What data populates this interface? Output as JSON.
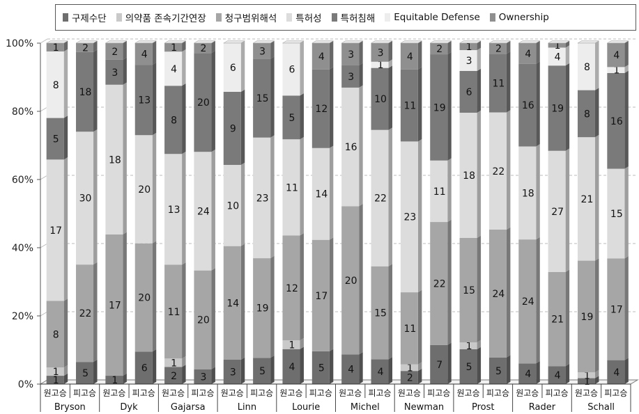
{
  "chart_data": {
    "type": "bar",
    "stacked": "percent",
    "categories": [
      "Bryson 원고승",
      "Bryson 피고승",
      "Dyk 원고승",
      "Dyk 피고승",
      "Gajarsa 원고승",
      "Gajarsa 피고승",
      "Linn 원고승",
      "Linn 피고승",
      "Lourie 원고승",
      "Lourie 피고승",
      "Michel 원고승",
      "Michel 피고승",
      "Newman 원고승",
      "Newman 피고승",
      "Prost 원고승",
      "Prost 피고승",
      "Rader 원고승",
      "Rader 피고승",
      "Schall 원고승",
      "Schall 피고승"
    ],
    "groups": [
      "Bryson",
      "Dyk",
      "Gajarsa",
      "Linn",
      "Lourie",
      "Michel",
      "Newman",
      "Prost",
      "Rader",
      "Schall"
    ],
    "sublabels": [
      "원고승",
      "피고승"
    ],
    "series": [
      {
        "name": "구제수단",
        "color": "#6e6e6e",
        "values": [
          1,
          5,
          1,
          6,
          2,
          3,
          3,
          5,
          4,
          5,
          4,
          4,
          2,
          7,
          5,
          5,
          4,
          4,
          1,
          4
        ]
      },
      {
        "name": "의약품 존속기간연장",
        "color": "#c9c9c9",
        "values": [
          1,
          0,
          0,
          0,
          1,
          0,
          0,
          0,
          1,
          0,
          0,
          0,
          1,
          0,
          1,
          0,
          0,
          0,
          1,
          0
        ]
      },
      {
        "name": "청구범위해석",
        "color": "#a6a6a6",
        "values": [
          8,
          22,
          17,
          20,
          11,
          20,
          14,
          19,
          12,
          17,
          20,
          15,
          11,
          22,
          15,
          24,
          24,
          21,
          19,
          17
        ]
      },
      {
        "name": "특허성",
        "color": "#dcdcdc",
        "values": [
          17,
          30,
          18,
          20,
          13,
          24,
          10,
          23,
          11,
          14,
          16,
          22,
          23,
          11,
          18,
          22,
          18,
          27,
          21,
          15
        ]
      },
      {
        "name": "특허침해",
        "color": "#7a7a7a",
        "values": [
          5,
          18,
          3,
          13,
          8,
          20,
          9,
          15,
          5,
          12,
          3,
          10,
          11,
          19,
          6,
          11,
          16,
          19,
          8,
          16
        ]
      },
      {
        "name": "Equitable  Defense",
        "color": "#ededed",
        "values": [
          8,
          0,
          0,
          0,
          4,
          0,
          6,
          0,
          6,
          0,
          0,
          1,
          0,
          0,
          3,
          0,
          0,
          4,
          8,
          1
        ]
      },
      {
        "name": "Ownership",
        "color": "#8f8f8f",
        "values": [
          1,
          2,
          2,
          4,
          1,
          2,
          0,
          3,
          0,
          4,
          3,
          3,
          4,
          2,
          1,
          2,
          4,
          1,
          0,
          4
        ]
      }
    ],
    "yticks": [
      "0%",
      "20%",
      "40%",
      "60%",
      "80%",
      "100%"
    ],
    "ylim": [
      0,
      100
    ],
    "legend_position": "top",
    "grid": true
  }
}
